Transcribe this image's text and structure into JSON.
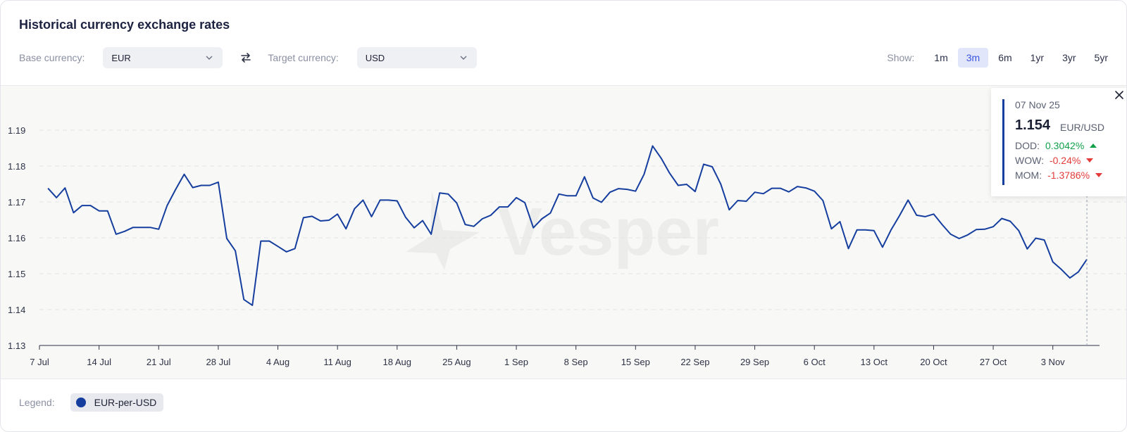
{
  "header": {
    "title": "Historical currency exchange rates"
  },
  "controls": {
    "base_label": "Base currency:",
    "base_value": "EUR",
    "target_label": "Target currency:",
    "target_value": "USD"
  },
  "range": {
    "label": "Show:",
    "options": [
      "1m",
      "3m",
      "6m",
      "1yr",
      "3yr",
      "5yr"
    ],
    "selected": "3m"
  },
  "tooltip": {
    "date": "07 Nov 25",
    "value": "1.154",
    "unit": "EUR/USD",
    "dod_label": "DOD:",
    "dod_value": "0.3042%",
    "wow_label": "WOW:",
    "wow_value": "-0.24%",
    "mom_label": "MOM:",
    "mom_value": "-1.3786%"
  },
  "legend": {
    "label": "Legend:",
    "series_name": "EUR-per-USD"
  },
  "watermark": "Vesper",
  "colors": {
    "line": "#153e9e",
    "up": "#12a14a",
    "down": "#e33a3a",
    "accent": "#3a56e0"
  },
  "chart_data": {
    "type": "line",
    "xlabel": "",
    "ylabel": "",
    "ylim": [
      1.13,
      1.19
    ],
    "yticks": [
      "1.13",
      "1.14",
      "1.15",
      "1.16",
      "1.17",
      "1.18",
      "1.19"
    ],
    "xticks": [
      "7 Jul",
      "14 Jul",
      "21 Jul",
      "28 Jul",
      "4 Aug",
      "11 Aug",
      "18 Aug",
      "25 Aug",
      "1 Sep",
      "8 Sep",
      "15 Sep",
      "22 Sep",
      "29 Sep",
      "6 Oct",
      "13 Oct",
      "20 Oct",
      "27 Oct",
      "3 Nov"
    ],
    "grid": "horizontal dashed",
    "series": [
      {
        "name": "EUR-per-USD",
        "x": [
          "2025-07-08",
          "2025-07-09",
          "2025-07-10",
          "2025-07-11",
          "2025-07-12",
          "2025-07-13",
          "2025-07-14",
          "2025-07-15",
          "2025-07-16",
          "2025-07-17",
          "2025-07-18",
          "2025-07-19",
          "2025-07-20",
          "2025-07-21",
          "2025-07-22",
          "2025-07-23",
          "2025-07-24",
          "2025-07-25",
          "2025-07-26",
          "2025-07-27",
          "2025-07-28",
          "2025-07-29",
          "2025-07-30",
          "2025-07-31",
          "2025-08-01",
          "2025-08-02",
          "2025-08-03",
          "2025-08-04",
          "2025-08-05",
          "2025-08-06",
          "2025-08-07",
          "2025-08-08",
          "2025-08-09",
          "2025-08-10",
          "2025-08-11",
          "2025-08-12",
          "2025-08-13",
          "2025-08-14",
          "2025-08-15",
          "2025-08-16",
          "2025-08-17",
          "2025-08-18",
          "2025-08-19",
          "2025-08-20",
          "2025-08-21",
          "2025-08-22",
          "2025-08-23",
          "2025-08-24",
          "2025-08-25",
          "2025-08-26",
          "2025-08-27",
          "2025-08-28",
          "2025-08-29",
          "2025-08-30",
          "2025-08-31",
          "2025-09-01",
          "2025-09-02",
          "2025-09-03",
          "2025-09-04",
          "2025-09-05",
          "2025-09-06",
          "2025-09-07",
          "2025-09-08",
          "2025-09-09",
          "2025-09-10",
          "2025-09-11",
          "2025-09-12",
          "2025-09-13",
          "2025-09-14",
          "2025-09-15",
          "2025-09-16",
          "2025-09-17",
          "2025-09-18",
          "2025-09-19",
          "2025-09-20",
          "2025-09-21",
          "2025-09-22",
          "2025-09-23",
          "2025-09-24",
          "2025-09-25",
          "2025-09-26",
          "2025-09-27",
          "2025-09-28",
          "2025-09-29",
          "2025-09-30",
          "2025-10-01",
          "2025-10-02",
          "2025-10-03",
          "2025-10-04",
          "2025-10-05",
          "2025-10-06",
          "2025-10-07",
          "2025-10-08",
          "2025-10-09",
          "2025-10-10",
          "2025-10-11",
          "2025-10-12",
          "2025-10-13",
          "2025-10-14",
          "2025-10-15",
          "2025-10-16",
          "2025-10-17",
          "2025-10-18",
          "2025-10-19",
          "2025-10-20",
          "2025-10-21",
          "2025-10-22",
          "2025-10-23",
          "2025-10-24",
          "2025-10-25",
          "2025-10-26",
          "2025-10-27",
          "2025-10-28",
          "2025-10-29",
          "2025-10-30",
          "2025-10-31",
          "2025-11-01",
          "2025-11-02",
          "2025-11-03",
          "2025-11-04",
          "2025-11-05",
          "2025-11-06",
          "2025-11-07"
        ],
        "values": [
          1.1738,
          1.1712,
          1.1739,
          1.167,
          1.169,
          1.169,
          1.1675,
          1.1675,
          1.161,
          1.1618,
          1.1629,
          1.1629,
          1.1629,
          1.1624,
          1.169,
          1.1735,
          1.1777,
          1.174,
          1.1746,
          1.1746,
          1.1755,
          1.1598,
          1.1564,
          1.1428,
          1.1412,
          1.1591,
          1.1591,
          1.1576,
          1.1561,
          1.157,
          1.1656,
          1.166,
          1.1647,
          1.1649,
          1.1666,
          1.1625,
          1.1681,
          1.1705,
          1.1659,
          1.1705,
          1.1705,
          1.1703,
          1.1657,
          1.1628,
          1.1648,
          1.161,
          1.1725,
          1.1722,
          1.1697,
          1.1637,
          1.1632,
          1.1653,
          1.1663,
          1.1686,
          1.1686,
          1.1712,
          1.1698,
          1.1628,
          1.1653,
          1.1669,
          1.1722,
          1.1717,
          1.1717,
          1.177,
          1.1711,
          1.1699,
          1.1727,
          1.1737,
          1.1735,
          1.173,
          1.1777,
          1.1856,
          1.1822,
          1.178,
          1.1746,
          1.1749,
          1.1729,
          1.1805,
          1.1798,
          1.175,
          1.1678,
          1.1704,
          1.1702,
          1.1727,
          1.1723,
          1.1738,
          1.1738,
          1.1728,
          1.1743,
          1.1739,
          1.173,
          1.1704,
          1.1625,
          1.1645,
          1.157,
          1.1622,
          1.1622,
          1.162,
          1.1574,
          1.1622,
          1.1662,
          1.1705,
          1.1663,
          1.1659,
          1.1666,
          1.1637,
          1.161,
          1.1598,
          1.1608,
          1.1623,
          1.1624,
          1.1631,
          1.1654,
          1.1646,
          1.162,
          1.1569,
          1.1599,
          1.1594,
          1.1533,
          1.1512,
          1.1488,
          1.1505,
          1.154
        ]
      }
    ]
  }
}
